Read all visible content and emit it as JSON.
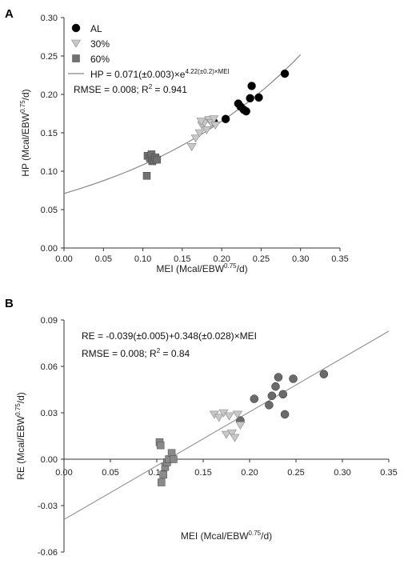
{
  "chart_data": [
    {
      "panel": "A",
      "type": "scatter",
      "xlabel": "MEI (Mcal/EBW",
      "xlabel_sup": "0.75",
      "xlabel_tail": "/d)",
      "ylabel": "HP (Mcal/EBW",
      "ylabel_sup": "0.75",
      "ylabel_tail": "/d)",
      "xlim": [
        0,
        0.35
      ],
      "ylim": [
        0,
        0.3
      ],
      "x_ticks": [
        "0.00",
        "0.05",
        "0.10",
        "0.15",
        "0.20",
        "0.25",
        "0.30",
        "0.35"
      ],
      "y_ticks": [
        "0.00",
        "0.05",
        "0.10",
        "0.15",
        "0.20",
        "0.25",
        "0.30"
      ],
      "legend_position": "top-left",
      "series": [
        {
          "name": "AL",
          "marker": "circle",
          "color": "#000000",
          "points": [
            [
              0.19,
              0.164
            ],
            [
              0.205,
              0.168
            ],
            [
              0.221,
              0.188
            ],
            [
              0.224,
              0.184
            ],
            [
              0.228,
              0.18
            ],
            [
              0.231,
              0.178
            ],
            [
              0.236,
              0.195
            ],
            [
              0.238,
              0.211
            ],
            [
              0.247,
              0.196
            ],
            [
              0.28,
              0.227
            ]
          ]
        },
        {
          "name": "30%",
          "marker": "triangle-down",
          "color": "#c8c8c8",
          "points": [
            [
              0.162,
              0.132
            ],
            [
              0.167,
              0.143
            ],
            [
              0.172,
              0.15
            ],
            [
              0.175,
              0.16
            ],
            [
              0.178,
              0.163
            ],
            [
              0.181,
              0.154
            ],
            [
              0.184,
              0.167
            ],
            [
              0.187,
              0.163
            ],
            [
              0.19,
              0.168
            ],
            [
              0.192,
              0.16
            ],
            [
              0.174,
              0.165
            ]
          ]
        },
        {
          "name": "60%",
          "marker": "square",
          "color": "#707070",
          "points": [
            [
              0.105,
              0.094
            ],
            [
              0.106,
              0.12
            ],
            [
              0.109,
              0.117
            ],
            [
              0.111,
              0.122
            ],
            [
              0.112,
              0.113
            ],
            [
              0.114,
              0.115
            ],
            [
              0.116,
              0.118
            ],
            [
              0.118,
              0.115
            ]
          ]
        }
      ],
      "fit_line": {
        "name": "HP = 0.071(±0.003)×e",
        "name_sup": "4.22(±0.2)×MEI",
        "a": 0.071,
        "b": 4.22,
        "x_range": [
          0,
          0.3
        ]
      },
      "annotation": "RMSE = 0.008; R",
      "annotation_sup": "2",
      "annotation_tail": " = 0.941"
    },
    {
      "panel": "B",
      "type": "scatter",
      "xlabel": "MEI (Mcal/EBW",
      "xlabel_sup": "0.75",
      "xlabel_tail": "/d)",
      "ylabel": "RE (Mcal/EBW",
      "ylabel_sup": "0.75",
      "ylabel_tail": "/d)",
      "xlim": [
        0,
        0.35
      ],
      "ylim": [
        -0.06,
        0.09
      ],
      "x_ticks": [
        "0.00",
        "0.05",
        "0.10",
        "0.15",
        "0.20",
        "0.25",
        "0.30",
        "0.35"
      ],
      "y_ticks": [
        "-0.06",
        "-0.03",
        "0.00",
        "0.03",
        "0.06",
        "0.09"
      ],
      "series": [
        {
          "name": "AL",
          "marker": "circle",
          "color": "#6a6a6a",
          "points": [
            [
              0.19,
              0.025
            ],
            [
              0.205,
              0.039
            ],
            [
              0.221,
              0.035
            ],
            [
              0.224,
              0.041
            ],
            [
              0.228,
              0.047
            ],
            [
              0.231,
              0.053
            ],
            [
              0.236,
              0.042
            ],
            [
              0.238,
              0.029
            ],
            [
              0.247,
              0.052
            ],
            [
              0.28,
              0.055
            ]
          ]
        },
        {
          "name": "30%",
          "marker": "triangle-down",
          "color": "#c8c8c8",
          "points": [
            [
              0.162,
              0.029
            ],
            [
              0.167,
              0.027
            ],
            [
              0.172,
              0.03
            ],
            [
              0.175,
              0.016
            ],
            [
              0.178,
              0.028
            ],
            [
              0.181,
              0.017
            ],
            [
              0.184,
              0.014
            ],
            [
              0.187,
              0.029
            ],
            [
              0.19,
              0.022
            ]
          ]
        },
        {
          "name": "60%",
          "marker": "square",
          "color": "#8a8a8a",
          "points": [
            [
              0.103,
              0.011
            ],
            [
              0.104,
              0.009
            ],
            [
              0.105,
              -0.015
            ],
            [
              0.107,
              -0.01
            ],
            [
              0.109,
              -0.005
            ],
            [
              0.111,
              -0.002
            ],
            [
              0.113,
              0.0
            ],
            [
              0.116,
              0.004
            ],
            [
              0.118,
              0.0
            ]
          ]
        }
      ],
      "fit_line": {
        "intercept": -0.039,
        "slope": 0.348,
        "x_range": [
          0,
          0.35
        ]
      },
      "annotation_1": "RE = -0.039(±0.005)+0.348(±0.028)×MEI",
      "annotation_2": "RMSE = 0.008; R",
      "annotation_2_sup": "2",
      "annotation_2_tail": " = 0.84"
    }
  ]
}
